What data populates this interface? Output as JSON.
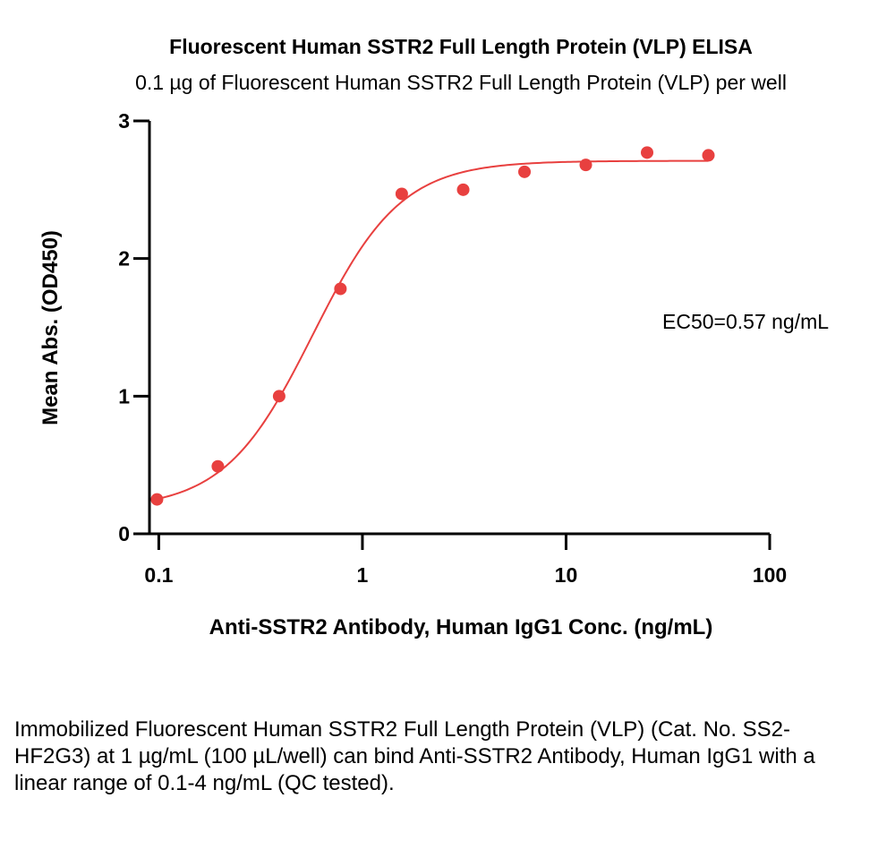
{
  "chart_data": {
    "type": "scatter",
    "title": "Fluorescent Human SSTR2 Full Length Protein (VLP) ELISA",
    "subtitle": "0.1 µg of Fluorescent Human SSTR2 Full Length Protein (VLP) per well",
    "xlabel": "Anti-SSTR2 Antibody, Human IgG1 Conc. (ng/mL)",
    "ylabel": "Mean Abs. (OD450)",
    "x_scale": "log",
    "xlim": [
      0.09,
      100
    ],
    "ylim": [
      0,
      3
    ],
    "x_ticks": [
      0.1,
      1,
      10,
      100
    ],
    "x_tick_labels": [
      "0.1",
      "1",
      "10",
      "100"
    ],
    "y_ticks": [
      0,
      1,
      2,
      3
    ],
    "y_tick_labels": [
      "0",
      "1",
      "2",
      "3"
    ],
    "grid": false,
    "color": "#e8403f",
    "series": [
      {
        "x": [
          0.098,
          0.195,
          0.39,
          0.78,
          1.56,
          3.125,
          6.25,
          12.5,
          25,
          50
        ],
        "y": [
          0.25,
          0.49,
          1.0,
          1.78,
          2.47,
          2.5,
          2.63,
          2.68,
          2.77,
          2.75
        ],
        "fit": {
          "model": "4PL",
          "bottom": 0.18,
          "top": 2.71,
          "ec50": 0.57,
          "hill": 2.0
        }
      }
    ],
    "annotations": [
      {
        "text": "EC50=0.57 ng/mL"
      }
    ]
  },
  "caption": "Immobilized Fluorescent Human SSTR2 Full Length Protein (VLP) (Cat. No. SS2-HF2G3) at 1 µg/mL (100 µL/well) can bind Anti-SSTR2 Antibody, Human IgG1 with a linear range of 0.1-4 ng/mL (QC tested)."
}
